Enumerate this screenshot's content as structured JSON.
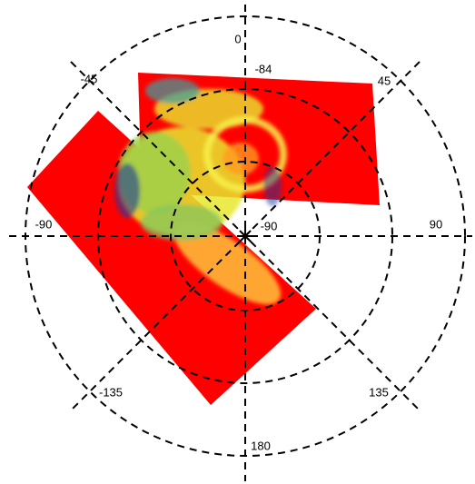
{
  "grid_labels": {
    "longitude_0": "0",
    "longitude_45": "45",
    "longitude_minus_45": "-45",
    "longitude_90": "90",
    "longitude_minus_90": "-90",
    "longitude_135": "135",
    "longitude_minus_135": "-135",
    "longitude_180": "180",
    "latitude_minus_84": "-84",
    "latitude_minus_90": "-90"
  }
}
